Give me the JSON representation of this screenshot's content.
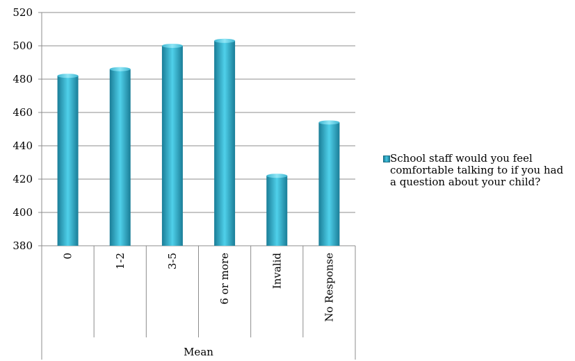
{
  "chart_data": {
    "type": "bar",
    "categories": [
      "0",
      "1-2",
      "3-5",
      "6 or more",
      "Invalid",
      "No Response"
    ],
    "group_label": "Mean",
    "series": [
      {
        "name": "School staff would you feel comfortable talking to if you had a question about your child?",
        "values": [
          482,
          486,
          500,
          503,
          422,
          454
        ]
      }
    ],
    "ylim": [
      380,
      520
    ],
    "yticks": [
      380,
      400,
      420,
      440,
      460,
      480,
      500,
      520
    ],
    "grid": true,
    "legend_position": "right",
    "colors": {
      "bar_light": "#4fd0ea",
      "bar_dark": "#1a7d97",
      "grid": "#8c8c8c"
    }
  }
}
